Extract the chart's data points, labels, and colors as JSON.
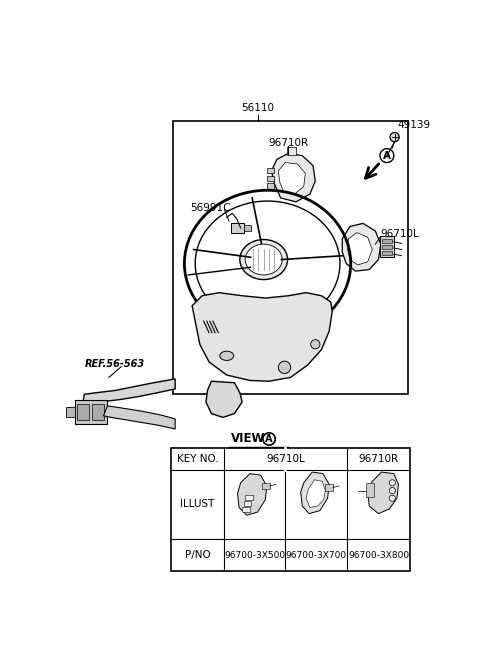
{
  "bg_color": "#ffffff",
  "label_56110": "56110",
  "label_96710R": "96710R",
  "label_96710L": "96710L",
  "label_56991C": "56991C",
  "label_49139": "49139",
  "label_ref": "REF.56-563",
  "view_label": "VIEW",
  "circle_a_label": "A",
  "table_key_no": "KEY NO.",
  "table_illust": "ILLUST",
  "table_pno_label": "P/NO",
  "table_col2": "96710L",
  "table_col3": "96710R",
  "table_pno": [
    "96700-3X500",
    "96700-3X700",
    "96700-3X800"
  ],
  "line_color": "#000000",
  "text_color": "#000000",
  "box_fill": "#f5f5f5",
  "part_fill": "#e8e8e8",
  "font_size": 7.5,
  "font_size_sm": 6.5
}
